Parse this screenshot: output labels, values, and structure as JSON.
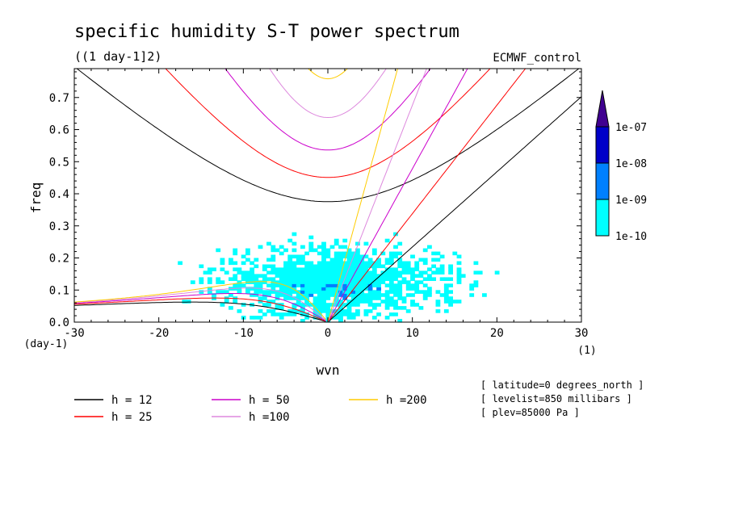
{
  "title": "specific humidity S-T power spectrum",
  "subtitle": "((1 day-1]2)",
  "dataset": "ECMWF_control",
  "chart_data": {
    "type": "heatmap",
    "xlabel": "wvn",
    "ylabel": "freq",
    "xlim": [
      -30,
      30
    ],
    "ylim": [
      0,
      0.79
    ],
    "xticks": [
      -30,
      -20,
      -10,
      0,
      10,
      20,
      30
    ],
    "yticks": [
      0.0,
      0.1,
      0.2,
      0.3,
      0.4,
      0.5,
      0.6,
      0.7
    ],
    "xtick_labels": [
      "-30",
      "-20",
      "-10",
      "0",
      "10",
      "20",
      "30"
    ],
    "ytick_labels": [
      "0.0",
      "0.1",
      "0.2",
      "0.3",
      "0.4",
      "0.5",
      "0.6",
      "0.7"
    ],
    "x_unit_left": "(day-1)",
    "x_unit_right": "(1)",
    "colorbar": {
      "levels": [
        "1e-10",
        "1e-09",
        "1e-08",
        "1e-07"
      ],
      "colors": [
        "#00ffff",
        "#0080ff",
        "#0000c8",
        "#400090"
      ]
    },
    "series": [
      {
        "name": "h = 12",
        "color": "#000000"
      },
      {
        "name": "h = 25",
        "color": "#ff0000"
      },
      {
        "name": "h = 50",
        "color": "#cc00cc"
      },
      {
        "name": "h =100",
        "color": "#dd88dd"
      },
      {
        "name": "h =200",
        "color": "#ffcc00"
      }
    ],
    "grid": false,
    "legend_position": "bottom-left"
  },
  "annotations": [
    "[ latitude=0 degrees_north ]",
    "[ levelist=850 millibars ]",
    "[ plev=85000 Pa ]"
  ]
}
